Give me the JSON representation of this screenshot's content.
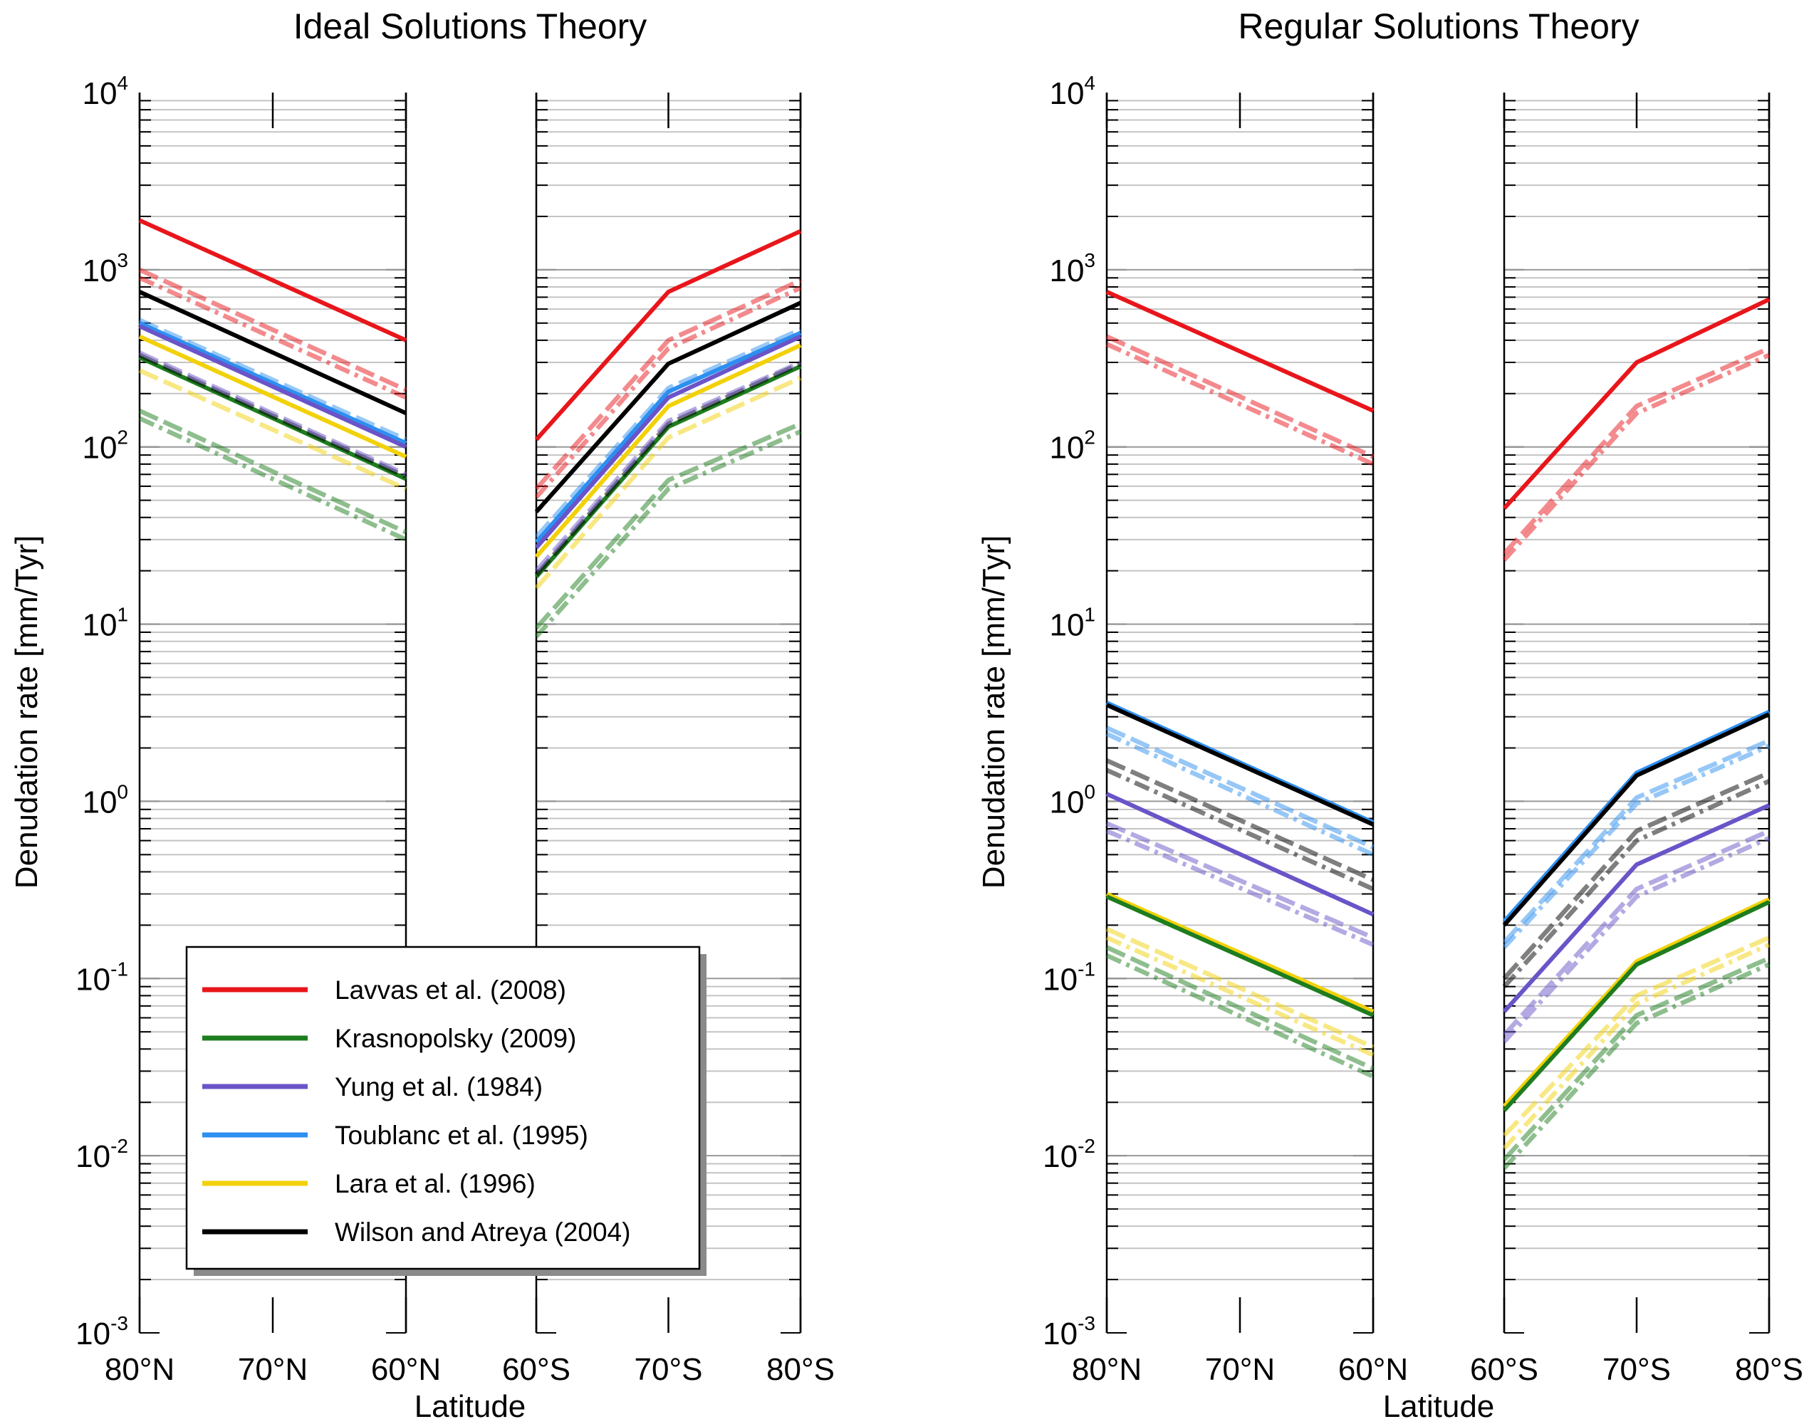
{
  "chart_data": [
    {
      "type": "line",
      "title": "Ideal Solutions Theory",
      "xlabel": "Latitude",
      "ylabel": "Denudation rate [mm/Tyr]",
      "yscale": "log",
      "ylim": [
        0.001,
        10000
      ],
      "ytick_labels": [
        {
          "base": "10",
          "exp": "4"
        },
        {
          "base": "10",
          "exp": "3"
        },
        {
          "base": "10",
          "exp": "2"
        },
        {
          "base": "10",
          "exp": "1"
        },
        {
          "base": "10",
          "exp": "0"
        },
        {
          "base": "10",
          "exp": "-1"
        },
        {
          "base": "10",
          "exp": "-2"
        },
        {
          "base": "10",
          "exp": "-3"
        }
      ],
      "north_panel": {
        "x_ticks": [
          "80°N",
          "70°N",
          "60°N"
        ]
      },
      "south_panel": {
        "x_ticks": [
          "60°S",
          "70°S",
          "80°S"
        ]
      },
      "series": [
        {
          "name": "Lavvas et al. (2008)",
          "color": "#e8161b",
          "style": "solid",
          "north": [
            1900,
            400
          ],
          "south": [
            110,
            750,
            1650
          ]
        },
        {
          "name": "Lavvas et al. (2008)",
          "color": "#e8161b",
          "style": "dashed",
          "north": [
            1000,
            210
          ],
          "south": [
            58,
            400,
            870
          ]
        },
        {
          "name": "Lavvas et al. (2008)",
          "color": "#e8161b",
          "style": "dashdot",
          "north": [
            900,
            190
          ],
          "south": [
            52,
            360,
            790
          ]
        },
        {
          "name": "Wilson and Atreya (2004)",
          "color": "#000000",
          "style": "solid",
          "north": [
            750,
            155
          ],
          "south": [
            43,
            295,
            650
          ]
        },
        {
          "name": "Toublanc et al. (1995)",
          "color": "#2d8ff0",
          "style": "solid",
          "north": [
            500,
            105
          ],
          "south": [
            29,
            205,
            440
          ]
        },
        {
          "name": "Toublanc et al. (1995)",
          "color": "#2d8ff0",
          "style": "dashed",
          "north": [
            520,
            110
          ],
          "south": [
            31,
            215,
            460
          ]
        },
        {
          "name": "Yung et al. (1984)",
          "color": "#6a54c8",
          "style": "solid",
          "north": [
            480,
            100
          ],
          "south": [
            27,
            190,
            420
          ]
        },
        {
          "name": "Lara et al. (1996)",
          "color": "#f2d10a",
          "style": "solid",
          "north": [
            420,
            88
          ],
          "south": [
            24,
            170,
            375
          ]
        },
        {
          "name": "Lara et al. (1996)",
          "color": "#f2d10a",
          "style": "dashed",
          "north": [
            270,
            58
          ],
          "south": [
            16,
            113,
            245
          ]
        },
        {
          "name": "Krasnopolsky (2009)",
          "color": "#1e7d1e",
          "style": "solid",
          "north": [
            320,
            66
          ],
          "south": [
            18.5,
            130,
            285
          ]
        },
        {
          "name": "Wilson and Atreya (2004)",
          "color": "#000000",
          "style": "dashed",
          "north": [
            330,
            68
          ],
          "south": [
            19,
            135,
            295
          ]
        },
        {
          "name": "Yung et al. (1984)",
          "color": "#6a54c8",
          "style": "dashed",
          "north": [
            340,
            70
          ],
          "south": [
            20,
            140,
            300
          ]
        },
        {
          "name": "Krasnopolsky (2009)",
          "color": "#1e7d1e",
          "style": "dashed",
          "north": [
            160,
            33
          ],
          "south": [
            9.5,
            65,
            135
          ]
        },
        {
          "name": "Krasnopolsky (2009)",
          "color": "#1e7d1e",
          "style": "dashdot",
          "north": [
            145,
            30
          ],
          "south": [
            8.5,
            58,
            122
          ]
        }
      ],
      "legend": {
        "location": "lower-center",
        "entries": [
          {
            "label": "Lavvas et al. (2008)",
            "color": "#e8161b"
          },
          {
            "label": "Krasnopolsky (2009)",
            "color": "#1e7d1e"
          },
          {
            "label": "Yung et al. (1984)",
            "color": "#6a54c8"
          },
          {
            "label": "Toublanc et al. (1995)",
            "color": "#2d8ff0"
          },
          {
            "label": "Lara et al. (1996)",
            "color": "#f2d10a"
          },
          {
            "label": "Wilson and Atreya (2004)",
            "color": "#000000"
          }
        ]
      }
    },
    {
      "type": "line",
      "title": "Regular Solutions Theory",
      "xlabel": "Latitude",
      "ylabel": "Denudation rate [mm/Tyr]",
      "yscale": "log",
      "ylim": [
        0.001,
        10000
      ],
      "ytick_labels": [
        {
          "base": "10",
          "exp": "4"
        },
        {
          "base": "10",
          "exp": "3"
        },
        {
          "base": "10",
          "exp": "2"
        },
        {
          "base": "10",
          "exp": "1"
        },
        {
          "base": "10",
          "exp": "0"
        },
        {
          "base": "10",
          "exp": "-1"
        },
        {
          "base": "10",
          "exp": "-2"
        },
        {
          "base": "10",
          "exp": "-3"
        }
      ],
      "north_panel": {
        "x_ticks": [
          "80°N",
          "70°N",
          "60°N"
        ]
      },
      "south_panel": {
        "x_ticks": [
          "60°S",
          "70°S",
          "80°S"
        ]
      },
      "series": [
        {
          "name": "Lavvas et al. (2008)",
          "color": "#e8161b",
          "style": "solid",
          "north": [
            750,
            160
          ],
          "south": [
            45,
            300,
            680
          ]
        },
        {
          "name": "Lavvas et al. (2008)",
          "color": "#e8161b",
          "style": "dashed",
          "north": [
            420,
            88
          ],
          "south": [
            25,
            170,
            360
          ]
        },
        {
          "name": "Lavvas et al. (2008)",
          "color": "#e8161b",
          "style": "dashdot",
          "north": [
            380,
            80
          ],
          "south": [
            23,
            155,
            330
          ]
        },
        {
          "name": "Toublanc et al. (1995)",
          "color": "#2d8ff0",
          "style": "solid",
          "north": [
            3.6,
            0.76
          ],
          "south": [
            0.21,
            1.45,
            3.2
          ]
        },
        {
          "name": "Wilson and Atreya (2004)",
          "color": "#000000",
          "style": "solid",
          "north": [
            3.5,
            0.74
          ],
          "south": [
            0.2,
            1.4,
            3.1
          ]
        },
        {
          "name": "Toublanc et al. (1995)",
          "color": "#2d8ff0",
          "style": "dashed",
          "north": [
            2.6,
            0.55
          ],
          "south": [
            0.16,
            1.05,
            2.2
          ]
        },
        {
          "name": "Toublanc et al. (1995)",
          "color": "#2d8ff0",
          "style": "dashdot",
          "north": [
            2.4,
            0.5
          ],
          "south": [
            0.15,
            0.97,
            2.05
          ]
        },
        {
          "name": "Wilson and Atreya (2004)",
          "color": "#000000",
          "style": "dashed",
          "north": [
            1.7,
            0.36
          ],
          "south": [
            0.1,
            0.68,
            1.45
          ]
        },
        {
          "name": "Wilson and Atreya (2004)",
          "color": "#000000",
          "style": "dashdot",
          "north": [
            1.5,
            0.32
          ],
          "south": [
            0.09,
            0.6,
            1.3
          ]
        },
        {
          "name": "Yung et al. (1984)",
          "color": "#6a54c8",
          "style": "solid",
          "north": [
            1.1,
            0.23
          ],
          "south": [
            0.065,
            0.44,
            0.95
          ]
        },
        {
          "name": "Yung et al. (1984)",
          "color": "#6a54c8",
          "style": "dashed",
          "north": [
            0.75,
            0.17
          ],
          "south": [
            0.048,
            0.32,
            0.68
          ]
        },
        {
          "name": "Yung et al. (1984)",
          "color": "#6a54c8",
          "style": "dashdot",
          "north": [
            0.68,
            0.155
          ],
          "south": [
            0.044,
            0.29,
            0.62
          ]
        },
        {
          "name": "Lara et al. (1996)",
          "color": "#f2d10a",
          "style": "solid",
          "north": [
            0.3,
            0.065
          ],
          "south": [
            0.019,
            0.125,
            0.28
          ]
        },
        {
          "name": "Krasnopolsky (2009)",
          "color": "#1e7d1e",
          "style": "solid",
          "north": [
            0.29,
            0.062
          ],
          "south": [
            0.018,
            0.12,
            0.27
          ]
        },
        {
          "name": "Lara et al. (1996)",
          "color": "#f2d10a",
          "style": "dashed",
          "north": [
            0.19,
            0.041
          ],
          "south": [
            0.013,
            0.08,
            0.17
          ]
        },
        {
          "name": "Lara et al. (1996)",
          "color": "#f2d10a",
          "style": "dashdot",
          "north": [
            0.17,
            0.037
          ],
          "south": [
            0.011,
            0.072,
            0.155
          ]
        },
        {
          "name": "Krasnopolsky (2009)",
          "color": "#1e7d1e",
          "style": "dashed",
          "north": [
            0.15,
            0.031
          ],
          "south": [
            0.0095,
            0.062,
            0.13
          ]
        },
        {
          "name": "Krasnopolsky (2009)",
          "color": "#1e7d1e",
          "style": "dashdot",
          "north": [
            0.135,
            0.028
          ],
          "south": [
            0.0085,
            0.056,
            0.12
          ]
        }
      ]
    }
  ]
}
